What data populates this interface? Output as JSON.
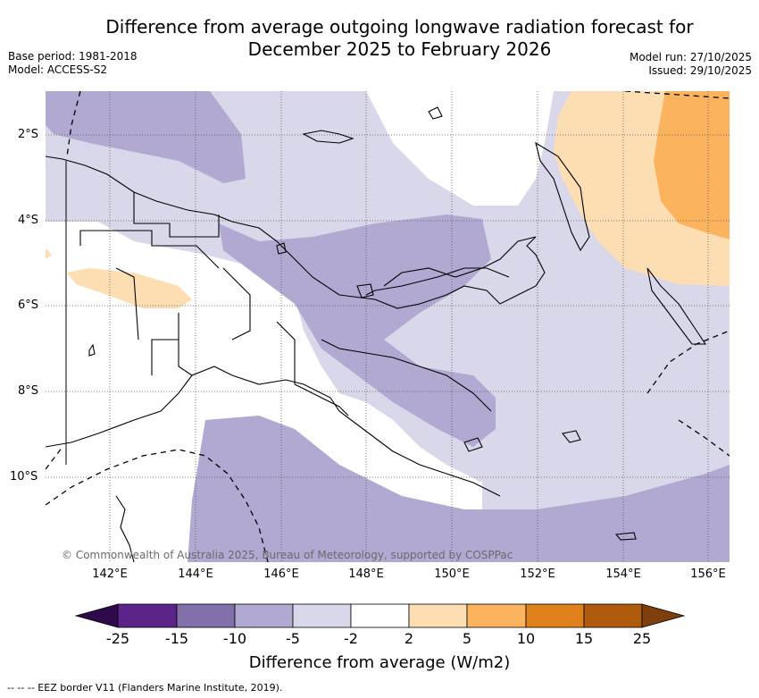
{
  "title": {
    "line1": "Difference from average outgoing longwave radiation forecast for",
    "line2": "December 2025 to February 2026"
  },
  "meta_left": {
    "base_period": "Base period: 1981-2018",
    "model": "Model: ACCESS-S2"
  },
  "meta_right": {
    "model_run": "Model run: 27/10/2025",
    "issued": "Issued: 29/10/2025"
  },
  "map": {
    "region": "Papua New Guinea",
    "lat_labels": [
      "2°S",
      "4°S",
      "6°S",
      "8°S",
      "10°S"
    ],
    "lon_labels": [
      "142°E",
      "144°E",
      "146°E",
      "148°E",
      "150°E",
      "152°E",
      "154°E",
      "156°E"
    ],
    "copyright": "© Commonwealth of Australia 2025, Bureau of Meteorology, supported by COSPPac"
  },
  "colorbar": {
    "title": "Difference from average (W/m2)",
    "tick_labels": [
      "-25",
      "-15",
      "-10",
      "-5",
      "-2",
      "2",
      "5",
      "10",
      "15",
      "25"
    ],
    "colors": [
      "#2e0a4a",
      "#5a2489",
      "#8270aa",
      "#b1a9d1",
      "#d8d8ea",
      "#ffffff",
      "#fddeb3",
      "#fbb35d",
      "#e0801a",
      "#b05a0c",
      "#7e3f0c"
    ]
  },
  "legend": {
    "eez": "--  --  -- EEZ border V11 (Flanders Marine Institute, 2019)."
  }
}
